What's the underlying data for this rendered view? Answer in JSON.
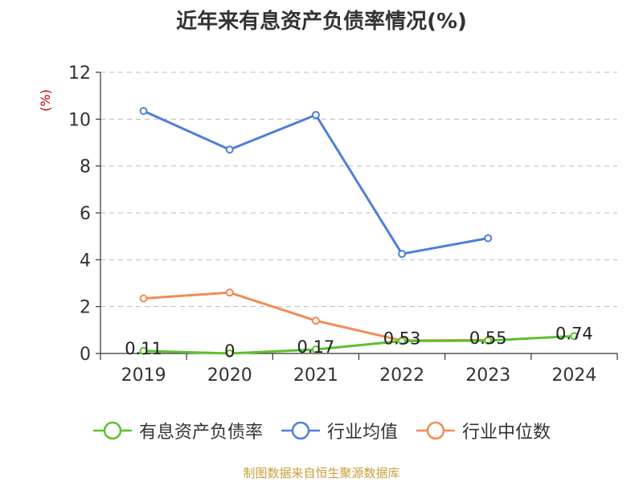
{
  "page": {
    "title": "近年来有息资产负债率情况(%)",
    "source": "制图数据来自恒生聚源数据库"
  },
  "chart_data": {
    "type": "line",
    "title": "近年来有息资产负债率情况(%)",
    "ylabel": "(%)",
    "categories": [
      "2019",
      "2020",
      "2021",
      "2022",
      "2023",
      "2024"
    ],
    "ylim": [
      0,
      12
    ],
    "yticks": [
      0,
      2,
      4,
      6,
      8,
      10,
      12
    ],
    "grid": true,
    "legend_position": "bottom",
    "series": [
      {
        "name": "有息资产负债率",
        "color": "#5cc12e",
        "values": [
          0.11,
          0,
          0.17,
          0.53,
          0.55,
          0.74
        ],
        "data_labels": [
          "0.11",
          "0",
          "0.17",
          "0.53",
          "0.55",
          "0.74"
        ]
      },
      {
        "name": "行业均值",
        "color": "#4f7fd9",
        "values": [
          10.35,
          8.7,
          10.18,
          4.25,
          4.92,
          null
        ]
      },
      {
        "name": "行业中位数",
        "color": "#f28b54",
        "values": [
          2.35,
          2.6,
          1.4,
          0.55,
          0.57,
          null
        ]
      }
    ]
  }
}
